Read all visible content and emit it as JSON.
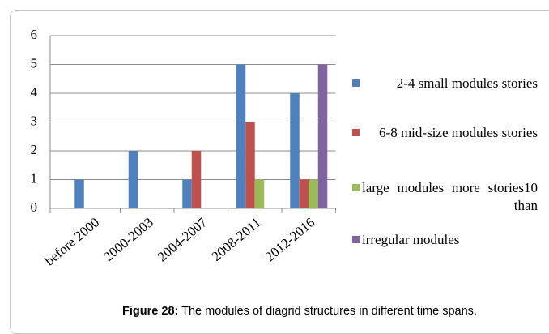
{
  "chart_data": {
    "type": "bar",
    "categories": [
      "before 2000",
      "2000-2003",
      "2004-2007",
      "2008-2011",
      "2012-2016"
    ],
    "series": [
      {
        "name": "2-4 small modules stories",
        "color": "#4f81bd",
        "values": [
          1,
          2,
          1,
          5,
          4
        ]
      },
      {
        "name": "6-8 mid-size modules stories",
        "color": "#c0504d",
        "values": [
          0,
          0,
          2,
          3,
          1
        ]
      },
      {
        "name": "large modules more stories10 than",
        "color": "#9bbb59",
        "values": [
          0,
          0,
          0,
          1,
          1
        ]
      },
      {
        "name": "irregular modules",
        "color": "#8064a2",
        "values": [
          0,
          0,
          0,
          0,
          5
        ]
      }
    ],
    "ylim": [
      0,
      6
    ],
    "yticks": [
      0,
      1,
      2,
      3,
      4,
      5,
      6
    ],
    "grid": true,
    "legend": "right"
  },
  "caption": {
    "label": "Figure 28:",
    "text": " The modules of diagrid structures in different time spans."
  }
}
